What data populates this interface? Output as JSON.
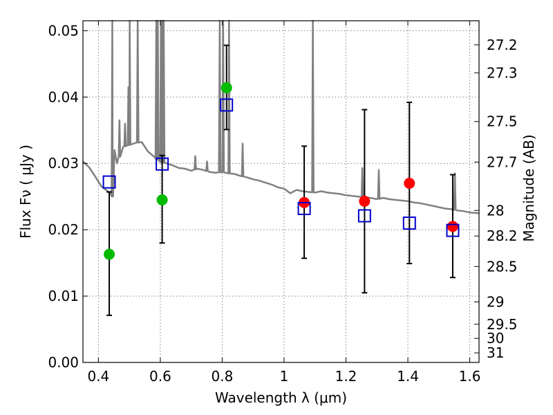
{
  "chart_data": {
    "type": "scatter",
    "title": "",
    "xlabel": "Wavelength  λ (μm)",
    "ylabel": "Flux  Fν  ( μJy )",
    "ylabel_right": "Magnitude (AB)",
    "xlim": [
      0.35,
      1.63
    ],
    "ylim": [
      0.0,
      0.0515
    ],
    "grid": true,
    "x_ticks": [
      {
        "v": 0.4,
        "label": "0.4"
      },
      {
        "v": 0.6,
        "label": "0.6"
      },
      {
        "v": 0.8,
        "label": "0.8"
      },
      {
        "v": 1.0,
        "label": "1"
      },
      {
        "v": 1.2,
        "label": "1.2"
      },
      {
        "v": 1.4,
        "label": "1.4"
      },
      {
        "v": 1.6,
        "label": "1.6"
      }
    ],
    "y_ticks": [
      {
        "v": 0.0,
        "label": "0.00"
      },
      {
        "v": 0.01,
        "label": "0.01"
      },
      {
        "v": 0.02,
        "label": "0.02"
      },
      {
        "v": 0.03,
        "label": "0.03"
      },
      {
        "v": 0.04,
        "label": "0.04"
      },
      {
        "v": 0.05,
        "label": "0.05"
      }
    ],
    "y2_ticks": [
      {
        "mag": 27.2,
        "label": "27.2"
      },
      {
        "mag": 27.3,
        "label": "27.3"
      },
      {
        "mag": 27.5,
        "label": "27.5"
      },
      {
        "mag": 27.7,
        "label": "27.7"
      },
      {
        "mag": 28.0,
        "label": "28"
      },
      {
        "mag": 28.2,
        "label": "28.2"
      },
      {
        "mag": 28.5,
        "label": "28.5"
      },
      {
        "mag": 29.0,
        "label": "29"
      },
      {
        "mag": 29.5,
        "label": "29.5"
      },
      {
        "mag": 30.0,
        "label": "30"
      },
      {
        "mag": 31.0,
        "label": "31"
      }
    ],
    "series": [
      {
        "marker": "filled-circle",
        "color": "#00bb00",
        "points": [
          {
            "x": 0.435,
            "y": 0.0163
          },
          {
            "x": 0.606,
            "y": 0.0245
          },
          {
            "x": 0.814,
            "y": 0.0414
          }
        ]
      },
      {
        "marker": "filled-circle",
        "color": "#ff0000",
        "points": [
          {
            "x": 1.065,
            "y": 0.0241
          },
          {
            "x": 1.26,
            "y": 0.0243
          },
          {
            "x": 1.405,
            "y": 0.027
          },
          {
            "x": 1.545,
            "y": 0.0205
          }
        ]
      },
      {
        "marker": "open-square",
        "color": "#0000cc",
        "points": [
          {
            "x": 0.435,
            "y": 0.0272
          },
          {
            "x": 0.606,
            "y": 0.0299
          },
          {
            "x": 0.814,
            "y": 0.0388
          },
          {
            "x": 1.065,
            "y": 0.0232
          },
          {
            "x": 1.26,
            "y": 0.0221
          },
          {
            "x": 1.405,
            "y": 0.021
          },
          {
            "x": 1.545,
            "y": 0.0199
          }
        ]
      },
      {
        "marker": "errorbar",
        "color": "#000000",
        "bars": [
          {
            "x": 0.435,
            "low": 0.0071,
            "high": 0.0257
          },
          {
            "x": 0.606,
            "low": 0.018,
            "high": 0.0312
          },
          {
            "x": 0.814,
            "low": 0.0351,
            "high": 0.0478
          },
          {
            "x": 1.065,
            "low": 0.0157,
            "high": 0.0326
          },
          {
            "x": 1.26,
            "low": 0.0105,
            "high": 0.0381
          },
          {
            "x": 1.405,
            "low": 0.0149,
            "high": 0.0392
          },
          {
            "x": 1.545,
            "low": 0.0128,
            "high": 0.0283
          }
        ]
      },
      {
        "marker": "line",
        "color": "#808080",
        "continuum": [
          [
            0.35,
            0.0303
          ],
          [
            0.37,
            0.0294
          ],
          [
            0.39,
            0.028
          ],
          [
            0.41,
            0.0265
          ],
          [
            0.43,
            0.0258
          ],
          [
            0.44,
            0.0254
          ],
          [
            0.446,
            0.025
          ],
          [
            0.452,
            0.032
          ],
          [
            0.46,
            0.03
          ],
          [
            0.48,
            0.0325
          ],
          [
            0.5,
            0.0328
          ],
          [
            0.52,
            0.0331
          ],
          [
            0.54,
            0.0332
          ],
          [
            0.56,
            0.0318
          ],
          [
            0.58,
            0.031
          ],
          [
            0.6,
            0.0302
          ],
          [
            0.62,
            0.03
          ],
          [
            0.64,
            0.0297
          ],
          [
            0.66,
            0.0293
          ],
          [
            0.68,
            0.0292
          ],
          [
            0.7,
            0.0289
          ],
          [
            0.72,
            0.0292
          ],
          [
            0.74,
            0.029
          ],
          [
            0.76,
            0.0287
          ],
          [
            0.78,
            0.0286
          ],
          [
            0.8,
            0.0287
          ],
          [
            0.82,
            0.0285
          ],
          [
            0.84,
            0.0284
          ],
          [
            0.86,
            0.0281
          ],
          [
            0.88,
            0.0279
          ],
          [
            0.9,
            0.0276
          ],
          [
            0.92,
            0.0274
          ],
          [
            0.94,
            0.0271
          ],
          [
            0.96,
            0.0268
          ],
          [
            0.98,
            0.0264
          ],
          [
            1.0,
            0.0262
          ],
          [
            1.02,
            0.0255
          ],
          [
            1.04,
            0.026
          ],
          [
            1.06,
            0.0258
          ],
          [
            1.08,
            0.0257
          ],
          [
            1.1,
            0.0256
          ],
          [
            1.12,
            0.0258
          ],
          [
            1.14,
            0.0256
          ],
          [
            1.16,
            0.0255
          ],
          [
            1.18,
            0.0254
          ],
          [
            1.2,
            0.0252
          ],
          [
            1.22,
            0.0251
          ],
          [
            1.24,
            0.025
          ],
          [
            1.26,
            0.0249
          ],
          [
            1.28,
            0.0248
          ],
          [
            1.3,
            0.0246
          ],
          [
            1.32,
            0.0248
          ],
          [
            1.34,
            0.0246
          ],
          [
            1.36,
            0.0245
          ],
          [
            1.38,
            0.0244
          ],
          [
            1.4,
            0.0243
          ],
          [
            1.42,
            0.0241
          ],
          [
            1.44,
            0.024
          ],
          [
            1.46,
            0.0238
          ],
          [
            1.48,
            0.0236
          ],
          [
            1.5,
            0.0234
          ],
          [
            1.52,
            0.0232
          ],
          [
            1.54,
            0.0231
          ],
          [
            1.56,
            0.0229
          ],
          [
            1.58,
            0.0228
          ],
          [
            1.6,
            0.0226
          ],
          [
            1.63,
            0.0225
          ]
        ],
        "emission_lines": [
          {
            "x": 0.445,
            "peak": 0.0515
          },
          {
            "x": 0.468,
            "peak": 0.0365
          },
          {
            "x": 0.486,
            "peak": 0.036
          },
          {
            "x": 0.497,
            "peak": 0.0415
          },
          {
            "x": 0.501,
            "peak": 0.0515
          },
          {
            "x": 0.527,
            "peak": 0.0515
          },
          {
            "x": 0.587,
            "peak": 0.0515
          },
          {
            "x": 0.592,
            "peak": 0.0515
          },
          {
            "x": 0.602,
            "peak": 0.0515
          },
          {
            "x": 0.607,
            "peak": 0.0515
          },
          {
            "x": 0.611,
            "peak": 0.0515
          },
          {
            "x": 0.713,
            "peak": 0.0311
          },
          {
            "x": 0.751,
            "peak": 0.0303
          },
          {
            "x": 0.792,
            "peak": 0.0515
          },
          {
            "x": 0.803,
            "peak": 0.0515
          },
          {
            "x": 0.822,
            "peak": 0.0515
          },
          {
            "x": 0.866,
            "peak": 0.033
          },
          {
            "x": 1.093,
            "peak": 0.0515
          },
          {
            "x": 1.253,
            "peak": 0.0293
          },
          {
            "x": 1.306,
            "peak": 0.029
          },
          {
            "x": 1.552,
            "peak": 0.0285
          }
        ]
      }
    ]
  }
}
